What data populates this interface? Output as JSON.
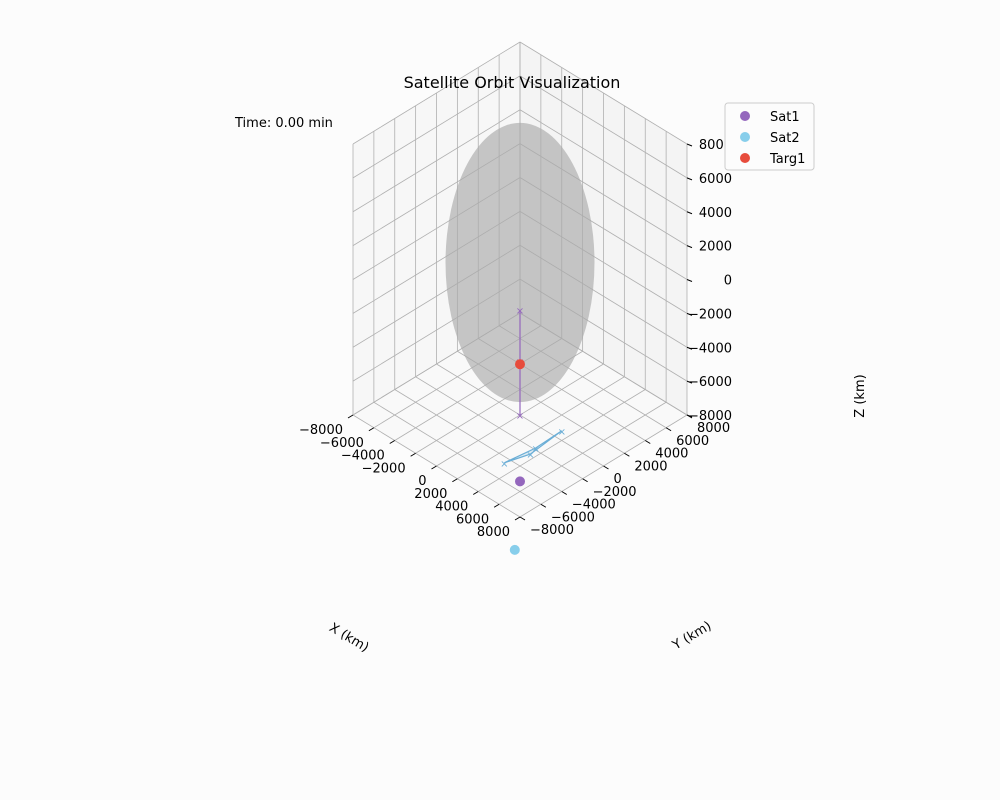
{
  "chart_data": {
    "type": "scatter3d",
    "title": "Satellite Orbit Visualization",
    "time_label": "Time: 0.00 min",
    "axes": {
      "x": {
        "label": "X (km)",
        "range": [
          -8000,
          8000
        ],
        "ticks": [
          "−8000",
          "−6000",
          "−4000",
          "−2000",
          "0",
          "2000",
          "4000",
          "6000",
          "8000"
        ]
      },
      "y": {
        "label": "Y (km)",
        "range": [
          -8000,
          8000
        ],
        "ticks": [
          "−8000",
          "−6000",
          "−4000",
          "−2000",
          "0",
          "2000",
          "4000",
          "6000",
          "8000"
        ]
      },
      "z": {
        "label": "Z (km)",
        "range": [
          -8000,
          8000
        ],
        "ticks": [
          "−8000",
          "−6000",
          "−4000",
          "−2000",
          "0",
          "2000",
          "4000",
          "6000",
          "8000"
        ]
      }
    },
    "grid": true,
    "legend_position": "top-right",
    "series": [
      {
        "name": "Sat1",
        "color": "#9467bd",
        "point": [
          6800,
          -6800,
          -6800
        ]
      },
      {
        "name": "Sat2",
        "color": "#87ceeb",
        "point": [
          9000,
          -9500,
          -9000
        ]
      },
      {
        "name": "Targ1",
        "color": "#e74c3c",
        "point": [
          0,
          0,
          -5000
        ]
      }
    ],
    "earth": {
      "radius_km": 6371,
      "color": "#aaaaaa"
    },
    "sensor_footprints": [
      {
        "color": "#9467bd",
        "corners": [
          [
            -2000,
            2000,
            -3300
          ],
          [
            2000,
            -2000,
            -3300
          ],
          [
            2000,
            -2000,
            -6500
          ],
          [
            -2000,
            2000,
            -6500
          ]
        ]
      },
      {
        "color": "#6baed6",
        "corners": [
          [
            5500,
            -1500,
            -6300
          ],
          [
            4500,
            -3500,
            -7300
          ],
          [
            3000,
            -4500,
            -8000
          ],
          [
            4000,
            -2500,
            -7500
          ]
        ]
      }
    ]
  }
}
